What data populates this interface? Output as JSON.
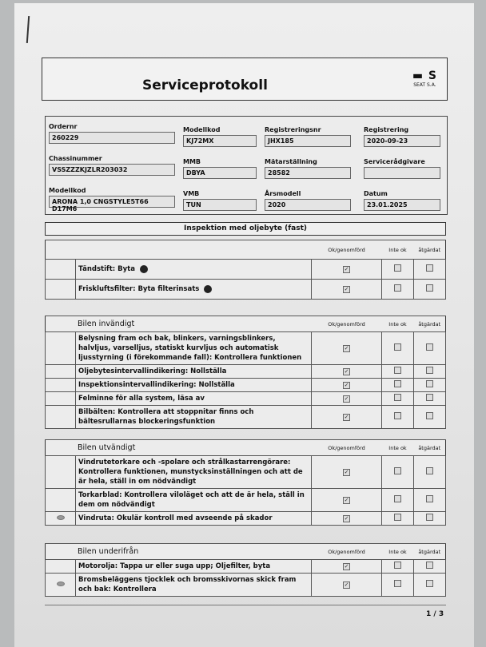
{
  "header": {
    "title": "Serviceprotokoll",
    "logo_text": "SEAT S.A."
  },
  "fields": [
    {
      "label": "Ordernr",
      "value": "260229"
    },
    {
      "label": "Modellkod",
      "value": "KJ72MX"
    },
    {
      "label": "Registreringsnr",
      "value": "JHX185"
    },
    {
      "label": "Registrering",
      "value": "2020-09-23"
    },
    {
      "label": "Chassinummer",
      "value": "VSSZZZKJZLR203032"
    },
    {
      "label": "MMB",
      "value": "DBYA"
    },
    {
      "label": "Mätarställning",
      "value": "28582"
    },
    {
      "label": "Servicerådgivare",
      "value": ""
    },
    {
      "label": "Modellkod",
      "value": "ARONA 1,0 CNGSTYLE5T66 D17M6"
    },
    {
      "label": "VMB",
      "value": "TUN"
    },
    {
      "label": "Årsmodell",
      "value": "2020"
    },
    {
      "label": "Datum",
      "value": "23.01.2025"
    }
  ],
  "section_title": "Inspektion med oljebyte (fast)",
  "columns": {
    "ok": "Ok/genomförd",
    "not_ok": "Inte ok",
    "fixed": "åtgärdat"
  },
  "tables": [
    {
      "name": "",
      "rows": [
        {
          "text": "Tändstift: Byta",
          "ok": true
        },
        {
          "text": "Friskluftsfilter: Byta filterinsats",
          "ok": true
        }
      ]
    },
    {
      "name": "Bilen invändigt",
      "rows": [
        {
          "text": "Belysning fram och bak, blinkers, varningsblinkers, halvljus, varselljus, statiskt kurvljus och automatisk ljusstyrning (i förekommande fall): Kontrollera funktionen",
          "ok": true
        },
        {
          "text": "Oljebytesintervallindikering: Nollställa",
          "ok": true
        },
        {
          "text": "Inspektionsintervallindikering: Nollställa",
          "ok": true
        },
        {
          "text": "Felminne för alla system, läsa av",
          "ok": true
        },
        {
          "text": "Bilbälten: Kontrollera att stoppnitar finns och bältesrullarnas blockeringsfunktion",
          "ok": true
        }
      ]
    },
    {
      "name": "Bilen utvändigt",
      "rows": [
        {
          "text": "Vindrutetorkare och -spolare och strålkastarrengörare: Kontrollera funktionen, munstycksinställningen och att de är hela, ställ in om nödvändigt",
          "ok": true
        },
        {
          "text": "Torkarblad: Kontrollera viloläget och att de är hela, ställ in dem om nödvändigt",
          "ok": true
        },
        {
          "text": "Vindruta: Okulär kontroll med avseende på skador",
          "ok": true,
          "icon": "eye-icon"
        }
      ]
    },
    {
      "name": "Bilen underifrån",
      "rows": [
        {
          "text": "Motorolja: Tappa ur eller suga upp; Oljefilter, byta",
          "ok": true
        },
        {
          "text": "Bromsbeläggens tjocklek och bromsskivornas skick fram och bak: Kontrollera",
          "ok": true,
          "icon": "eye-icon"
        }
      ]
    }
  ],
  "page_number": "1 / 3"
}
